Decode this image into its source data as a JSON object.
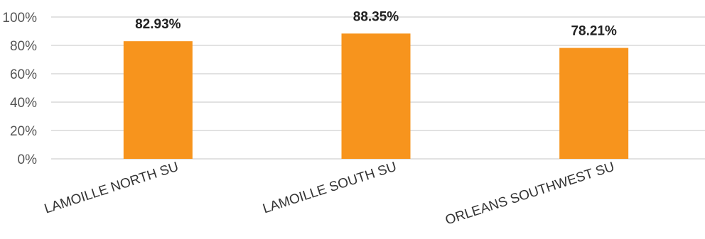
{
  "chart_data": {
    "type": "bar",
    "categories": [
      "LAMOILLE NORTH SU",
      "LAMOILLE SOUTH SU",
      "ORLEANS SOUTHWEST SU"
    ],
    "values": [
      82.93,
      88.35,
      78.21
    ],
    "value_labels": [
      "82.93%",
      "88.35%",
      "78.21%"
    ],
    "ylim": [
      0,
      100
    ],
    "yticks": [
      0,
      20,
      40,
      60,
      80,
      100
    ],
    "ytick_labels": [
      "0%",
      "20%",
      "40%",
      "60%",
      "80%",
      "100%"
    ],
    "grid": true,
    "legend": "none",
    "title": "",
    "xlabel": "",
    "ylabel": "",
    "colors": {
      "bar": "#F7941D",
      "grid": "#D9D9D9"
    }
  }
}
